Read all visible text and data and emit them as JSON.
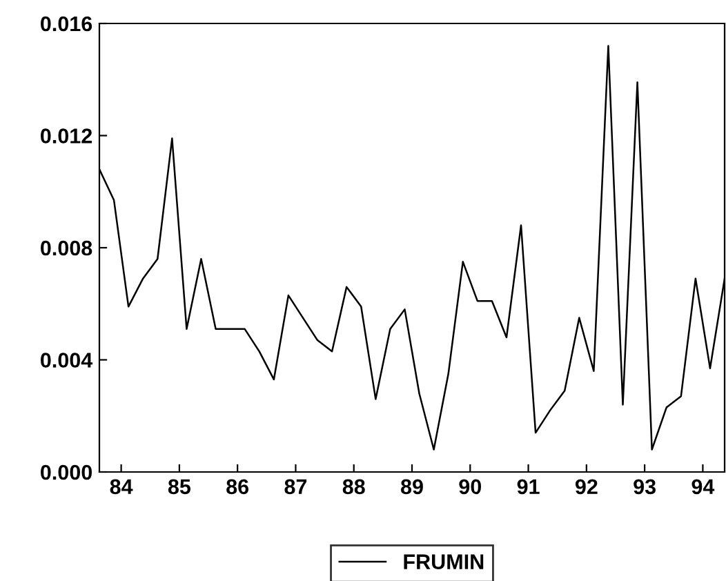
{
  "chart_data": {
    "type": "line",
    "x": [
      84.0,
      84.25,
      84.5,
      84.75,
      85.0,
      85.25,
      85.5,
      85.75,
      86.0,
      86.25,
      86.5,
      86.75,
      87.0,
      87.25,
      87.5,
      87.75,
      88.0,
      88.25,
      88.5,
      88.75,
      89.0,
      89.25,
      89.5,
      89.75,
      90.0,
      90.25,
      90.5,
      90.75,
      91.0,
      91.25,
      91.5,
      91.75,
      92.0,
      92.25,
      92.5,
      92.75,
      93.0,
      93.25,
      93.5,
      93.75,
      94.0,
      94.25,
      94.5,
      94.75
    ],
    "series": [
      {
        "name": "FRUMIN",
        "color": "#000000",
        "values": [
          0.0108,
          0.0097,
          0.0059,
          0.0069,
          0.0076,
          0.0119,
          0.0051,
          0.0076,
          0.0051,
          0.0051,
          0.0051,
          0.0043,
          0.0033,
          0.0063,
          0.0055,
          0.0047,
          0.0043,
          0.0066,
          0.0059,
          0.0026,
          0.0051,
          0.0058,
          0.0028,
          0.0008,
          0.0035,
          0.0075,
          0.0061,
          0.0061,
          0.0048,
          0.0088,
          0.0014,
          0.0022,
          0.0029,
          0.0055,
          0.0036,
          0.0152,
          0.0024,
          0.0139,
          0.0008,
          0.0023,
          0.0027,
          0.0069,
          0.0037,
          0.0069
        ]
      }
    ],
    "xlim": [
      84.0,
      94.75
    ],
    "xticks": [
      {
        "value": 84.375,
        "label": "84"
      },
      {
        "value": 85.375,
        "label": "85"
      },
      {
        "value": 86.375,
        "label": "86"
      },
      {
        "value": 87.375,
        "label": "87"
      },
      {
        "value": 88.375,
        "label": "88"
      },
      {
        "value": 89.375,
        "label": "89"
      },
      {
        "value": 90.375,
        "label": "90"
      },
      {
        "value": 91.375,
        "label": "91"
      },
      {
        "value": 92.375,
        "label": "92"
      },
      {
        "value": 93.375,
        "label": "93"
      },
      {
        "value": 94.375,
        "label": "94"
      }
    ],
    "ylim": [
      0,
      0.016
    ],
    "yticks": [
      {
        "value": 0,
        "label": "0.000"
      },
      {
        "value": 0.004,
        "label": "0.004"
      },
      {
        "value": 0.008,
        "label": "0.008"
      },
      {
        "value": 0.012,
        "label": "0.012"
      },
      {
        "value": 0.016,
        "label": "0.016"
      }
    ],
    "grid": false,
    "legend": "bottom",
    "marker": "none",
    "line_style": "solid"
  }
}
